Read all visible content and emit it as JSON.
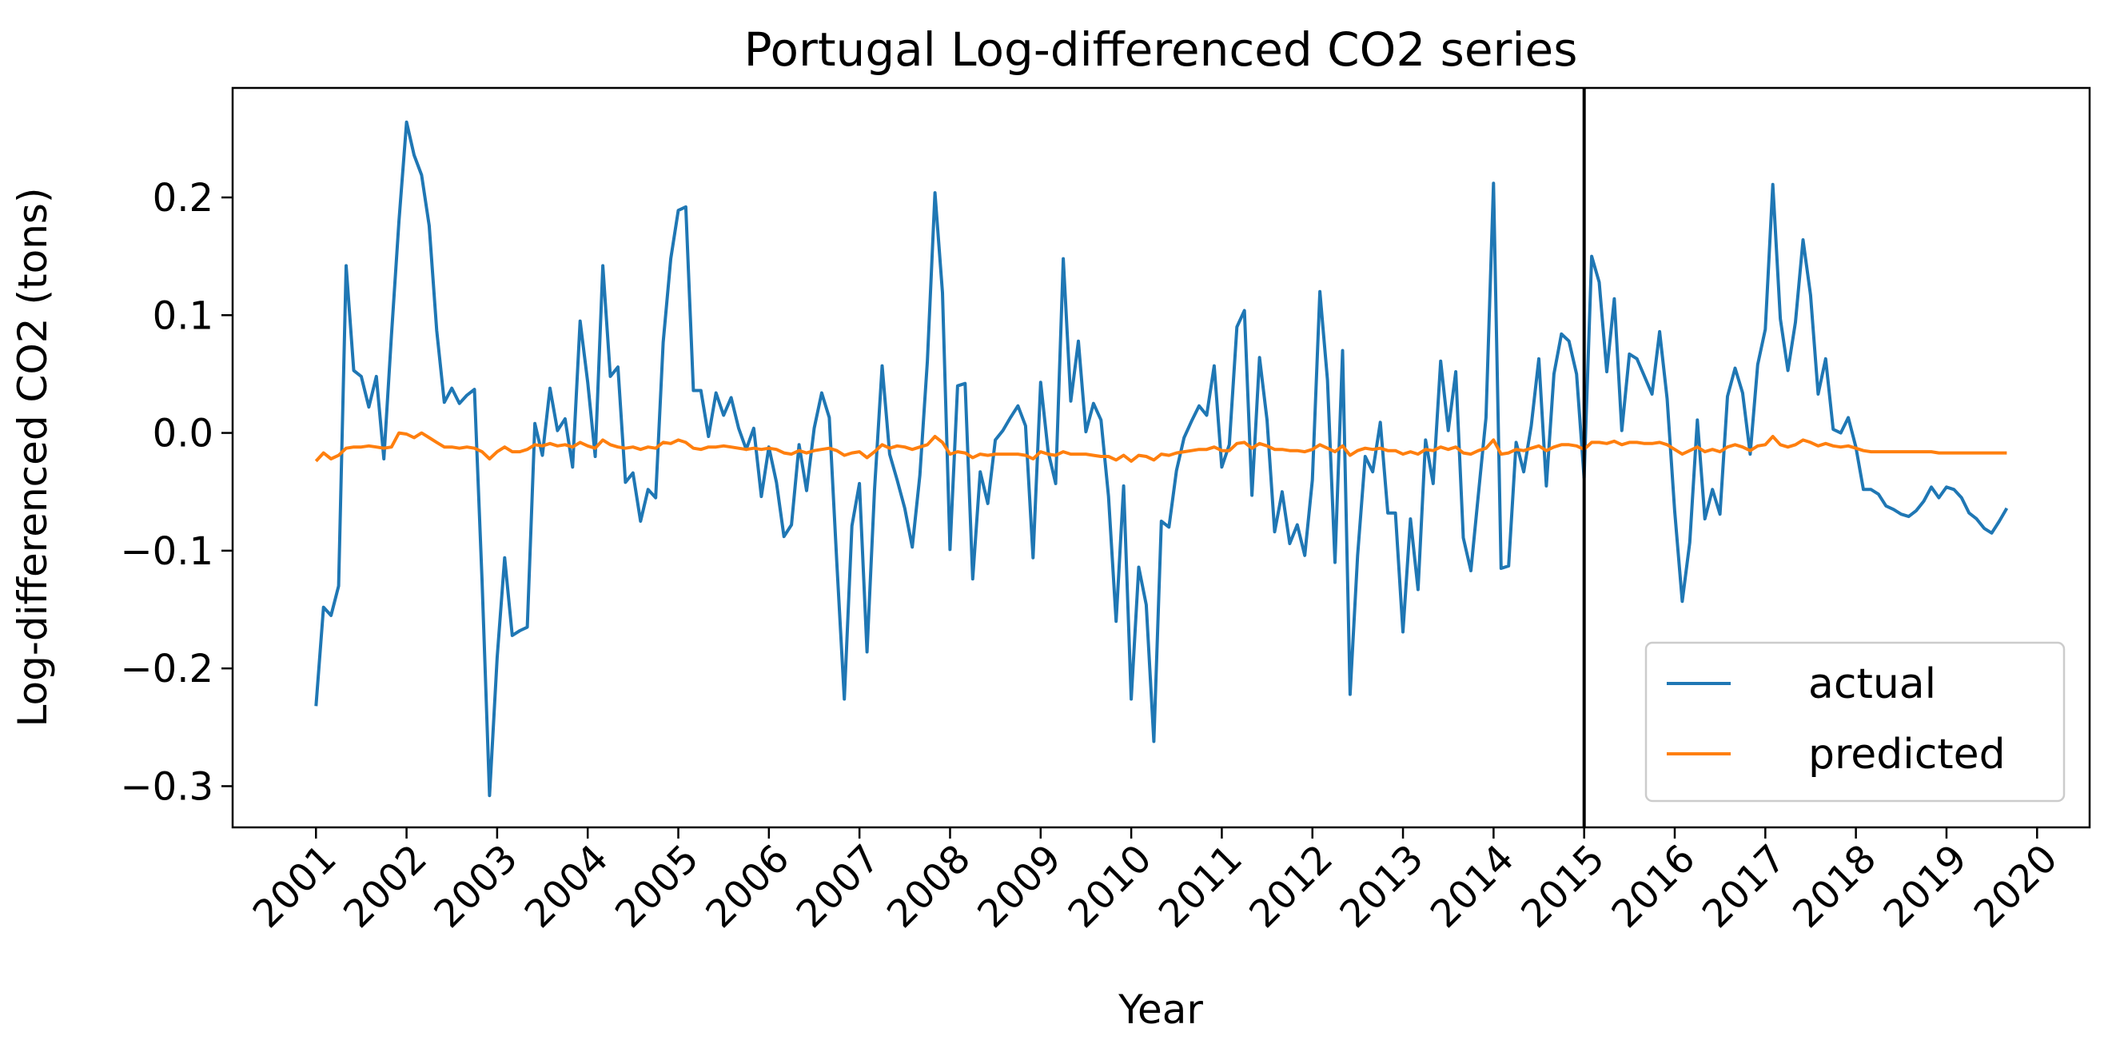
{
  "chart_data": {
    "type": "line",
    "title": "Portugal Log-differenced CO2 series",
    "xlabel": "Year",
    "ylabel": "Log-differenced CO2 (tons)",
    "xlim": [
      2000.08,
      2020.58
    ],
    "ylim": [
      -0.335,
      0.293
    ],
    "x_ticks": [
      "2001",
      "2002",
      "2003",
      "2004",
      "2005",
      "2006",
      "2007",
      "2008",
      "2009",
      "2010",
      "2011",
      "2012",
      "2013",
      "2014",
      "2015",
      "2016",
      "2017",
      "2018",
      "2019",
      "2020"
    ],
    "y_ticks": [
      -0.3,
      -0.2,
      -0.1,
      0.0,
      0.1,
      0.2
    ],
    "y_tick_labels": [
      "−0.3",
      "−0.2",
      "−0.1",
      "0.0",
      "0.1",
      "0.2"
    ],
    "grid": false,
    "legend": "bottom-right",
    "vline": {
      "x": 2015.0,
      "color": "#000000"
    },
    "colors": {
      "actual": "#1f77b4",
      "predicted": "#ff7f0e"
    },
    "x_start": 2001.0,
    "x_step": 0.08333,
    "series": [
      {
        "name": "actual",
        "values": [
          -0.232,
          -0.148,
          -0.155,
          -0.13,
          0.142,
          0.053,
          0.048,
          0.022,
          0.048,
          -0.022,
          0.083,
          0.18,
          0.264,
          0.236,
          0.219,
          0.176,
          0.087,
          0.026,
          0.038,
          0.025,
          0.032,
          0.037,
          -0.125,
          -0.308,
          -0.191,
          -0.106,
          -0.172,
          -0.168,
          -0.165,
          0.008,
          -0.019,
          0.038,
          0.002,
          0.012,
          -0.029,
          0.095,
          0.043,
          -0.02,
          0.142,
          0.048,
          0.056,
          -0.042,
          -0.034,
          -0.075,
          -0.048,
          -0.055,
          0.077,
          0.148,
          0.189,
          0.192,
          0.036,
          0.036,
          -0.003,
          0.034,
          0.015,
          0.03,
          0.004,
          -0.014,
          0.004,
          -0.054,
          -0.012,
          -0.042,
          -0.088,
          -0.078,
          -0.01,
          -0.049,
          0.004,
          0.034,
          0.013,
          -0.11,
          -0.226,
          -0.079,
          -0.043,
          -0.186,
          -0.048,
          0.057,
          -0.018,
          -0.04,
          -0.064,
          -0.097,
          -0.036,
          0.061,
          0.204,
          0.119,
          -0.099,
          0.04,
          0.042,
          -0.124,
          -0.033,
          -0.06,
          -0.006,
          0.002,
          0.013,
          0.023,
          0.006,
          -0.106,
          0.043,
          -0.016,
          -0.043,
          0.148,
          0.027,
          0.078,
          0.001,
          0.025,
          0.011,
          -0.054,
          -0.16,
          -0.045,
          -0.226,
          -0.114,
          -0.146,
          -0.262,
          -0.075,
          -0.08,
          -0.032,
          -0.004,
          0.01,
          0.023,
          0.015,
          0.057,
          -0.029,
          -0.01,
          0.09,
          0.104,
          -0.053,
          0.064,
          0.011,
          -0.084,
          -0.05,
          -0.094,
          -0.078,
          -0.104,
          -0.04,
          0.12,
          0.045,
          -0.11,
          0.07,
          -0.222,
          -0.104,
          -0.02,
          -0.033,
          0.009,
          -0.068,
          -0.068,
          -0.169,
          -0.073,
          -0.133,
          -0.006,
          -0.043,
          0.061,
          0.002,
          0.052,
          -0.089,
          -0.117,
          -0.052,
          0.013,
          0.212,
          -0.115,
          -0.113,
          -0.008,
          -0.033,
          0.006,
          0.063,
          -0.045,
          0.05,
          0.084,
          0.078,
          0.05,
          -0.038,
          0.15,
          0.128,
          0.052,
          0.114,
          0.002,
          0.067,
          0.063,
          0.048,
          0.033,
          0.086,
          0.029,
          -0.066,
          -0.143,
          -0.093,
          0.011,
          -0.073,
          -0.048,
          -0.069,
          0.031,
          0.055,
          0.034,
          -0.018,
          0.058,
          0.088,
          0.211,
          0.097,
          0.053,
          0.094,
          0.164,
          0.117,
          0.033,
          0.063,
          0.003,
          0.0,
          0.013,
          -0.012,
          -0.048,
          -0.048,
          -0.052,
          -0.062,
          -0.065,
          -0.069,
          -0.071,
          -0.066,
          -0.058,
          -0.046,
          -0.055,
          -0.046,
          -0.048,
          -0.055,
          -0.068,
          -0.073,
          -0.081,
          -0.085,
          -0.075,
          -0.064
        ]
      },
      {
        "name": "predicted",
        "values": [
          -0.024,
          -0.017,
          -0.022,
          -0.019,
          -0.013,
          -0.012,
          -0.012,
          -0.011,
          -0.012,
          -0.013,
          -0.012,
          0.0,
          -0.001,
          -0.004,
          0.0,
          -0.004,
          -0.008,
          -0.012,
          -0.012,
          -0.013,
          -0.012,
          -0.013,
          -0.016,
          -0.022,
          -0.016,
          -0.012,
          -0.016,
          -0.016,
          -0.014,
          -0.01,
          -0.011,
          -0.009,
          -0.011,
          -0.01,
          -0.012,
          -0.008,
          -0.011,
          -0.013,
          -0.006,
          -0.01,
          -0.012,
          -0.013,
          -0.012,
          -0.014,
          -0.012,
          -0.013,
          -0.008,
          -0.009,
          -0.006,
          -0.008,
          -0.013,
          -0.014,
          -0.012,
          -0.012,
          -0.011,
          -0.012,
          -0.013,
          -0.014,
          -0.013,
          -0.014,
          -0.013,
          -0.014,
          -0.017,
          -0.018,
          -0.015,
          -0.017,
          -0.015,
          -0.014,
          -0.013,
          -0.015,
          -0.019,
          -0.017,
          -0.016,
          -0.021,
          -0.016,
          -0.01,
          -0.013,
          -0.011,
          -0.012,
          -0.014,
          -0.012,
          -0.01,
          -0.003,
          -0.008,
          -0.018,
          -0.016,
          -0.017,
          -0.021,
          -0.018,
          -0.019,
          -0.018,
          -0.018,
          -0.018,
          -0.018,
          -0.019,
          -0.022,
          -0.016,
          -0.018,
          -0.019,
          -0.016,
          -0.018,
          -0.018,
          -0.018,
          -0.019,
          -0.02,
          -0.02,
          -0.023,
          -0.019,
          -0.024,
          -0.019,
          -0.02,
          -0.023,
          -0.018,
          -0.019,
          -0.017,
          -0.016,
          -0.015,
          -0.014,
          -0.014,
          -0.012,
          -0.015,
          -0.015,
          -0.009,
          -0.008,
          -0.013,
          -0.009,
          -0.011,
          -0.014,
          -0.014,
          -0.015,
          -0.015,
          -0.016,
          -0.014,
          -0.01,
          -0.013,
          -0.016,
          -0.011,
          -0.019,
          -0.015,
          -0.013,
          -0.014,
          -0.013,
          -0.015,
          -0.015,
          -0.018,
          -0.016,
          -0.018,
          -0.014,
          -0.015,
          -0.012,
          -0.014,
          -0.012,
          -0.017,
          -0.018,
          -0.015,
          -0.013,
          -0.006,
          -0.018,
          -0.017,
          -0.014,
          -0.015,
          -0.013,
          -0.011,
          -0.015,
          -0.012,
          -0.01,
          -0.01,
          -0.011,
          -0.014,
          -0.008,
          -0.008,
          -0.009,
          -0.007,
          -0.01,
          -0.008,
          -0.008,
          -0.009,
          -0.009,
          -0.008,
          -0.01,
          -0.014,
          -0.018,
          -0.015,
          -0.012,
          -0.016,
          -0.014,
          -0.016,
          -0.012,
          -0.01,
          -0.012,
          -0.015,
          -0.011,
          -0.01,
          -0.003,
          -0.01,
          -0.012,
          -0.01,
          -0.006,
          -0.008,
          -0.011,
          -0.009,
          -0.011,
          -0.012,
          -0.011,
          -0.013,
          -0.015,
          -0.016,
          -0.016,
          -0.016,
          -0.016,
          -0.016,
          -0.016,
          -0.016,
          -0.016,
          -0.016,
          -0.017,
          -0.017,
          -0.017,
          -0.017,
          -0.017,
          -0.017,
          -0.017,
          -0.017,
          -0.017,
          -0.017
        ]
      }
    ]
  }
}
